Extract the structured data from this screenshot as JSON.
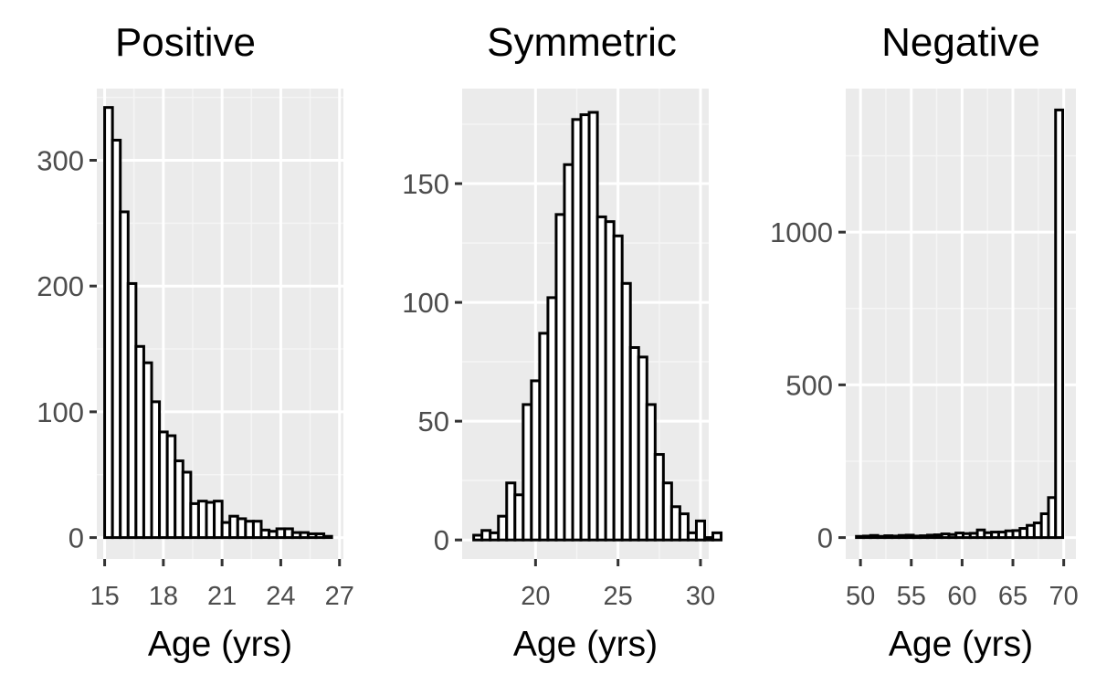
{
  "colors": {
    "panel_background": "#ebebeb",
    "grid_major": "#ffffff",
    "grid_minor": "#f5f5f5",
    "bar_fill": "#ffffff",
    "bar_outline": "#000000",
    "tick_color": "#333333",
    "tick_label_color": "#4d4d4d"
  },
  "chart_data": [
    {
      "type": "bar",
      "title": "Positive",
      "xlabel": "Age (yrs)",
      "ylabel": "",
      "bin_width": 0.4,
      "bin_start": 15.0,
      "values": [
        342,
        316,
        259,
        202,
        152,
        139,
        108,
        84,
        81,
        61,
        52,
        27,
        29,
        28,
        29,
        12,
        17,
        15,
        13,
        13,
        6,
        5,
        7,
        7,
        4,
        4,
        3,
        3,
        1
      ],
      "xlim": [
        14.6,
        27.2
      ],
      "ylim": [
        -17,
        357
      ],
      "xticks": [
        15,
        18,
        21,
        24,
        27
      ],
      "xtick_labels": [
        "15",
        "18",
        "21",
        "24",
        "27"
      ],
      "yticks": [
        0,
        100,
        200,
        300
      ],
      "ytick_labels": [
        "0",
        "100",
        "200",
        "300"
      ]
    },
    {
      "type": "bar",
      "title": "Symmetric",
      "xlabel": "Age (yrs)",
      "ylabel": "",
      "bin_width": 0.5,
      "bin_start": 16.25,
      "values": [
        2,
        4,
        3,
        10,
        24,
        19,
        57,
        67,
        87,
        102,
        137,
        158,
        177,
        179,
        180,
        136,
        134,
        128,
        108,
        81,
        77,
        57,
        36,
        24,
        14,
        11,
        3,
        8,
        1,
        3
      ],
      "xlim": [
        15.55,
        30.5
      ],
      "ylim": [
        -8,
        190
      ],
      "xticks": [
        20,
        25,
        30
      ],
      "xtick_labels": [
        "20",
        "25",
        "30"
      ],
      "yticks": [
        0,
        50,
        100,
        150
      ],
      "ytick_labels": [
        "0",
        "50",
        "100",
        "150"
      ]
    },
    {
      "type": "bar",
      "title": "Negative",
      "xlabel": "Age (yrs)",
      "ylabel": "",
      "bin_width": 0.7,
      "bin_start": 49.6,
      "values": [
        4,
        5,
        7,
        4,
        6,
        5,
        7,
        8,
        5,
        6,
        8,
        9,
        12,
        10,
        15,
        13,
        14,
        25,
        16,
        18,
        18,
        22,
        23,
        30,
        40,
        48,
        78,
        131,
        1400
      ],
      "xlim": [
        48.55,
        71.2
      ],
      "ylim": [
        -70,
        1470
      ],
      "xticks": [
        50,
        55,
        60,
        65,
        70
      ],
      "xtick_labels": [
        "50",
        "55",
        "60",
        "65",
        "70"
      ],
      "yticks": [
        0,
        500,
        1000
      ],
      "ytick_labels": [
        "0",
        "500",
        "1000"
      ]
    }
  ]
}
